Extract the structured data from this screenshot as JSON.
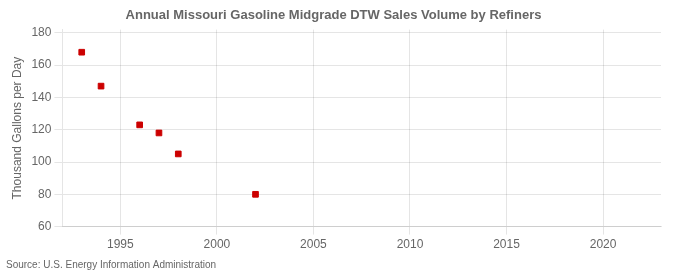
{
  "chart_data": {
    "type": "scatter",
    "title": "Annual Missouri Gasoline Midgrade DTW Sales Volume by Refiners",
    "ylabel": "Thousand Gallons per Day",
    "source": "Source: U.S. Energy Information Administration",
    "x": [
      1993,
      1994,
      1996,
      1997,
      1998,
      2002
    ],
    "values": [
      168,
      147,
      123,
      118,
      105,
      80
    ],
    "color": "#cc0000",
    "marker": "square",
    "xlim": [
      1992,
      2023
    ],
    "ylim": [
      60,
      182
    ],
    "xticks": [
      1995,
      2000,
      2005,
      2010,
      2015,
      2020
    ],
    "yticks": [
      60,
      80,
      100,
      120,
      140,
      160,
      180
    ],
    "grid": true
  }
}
